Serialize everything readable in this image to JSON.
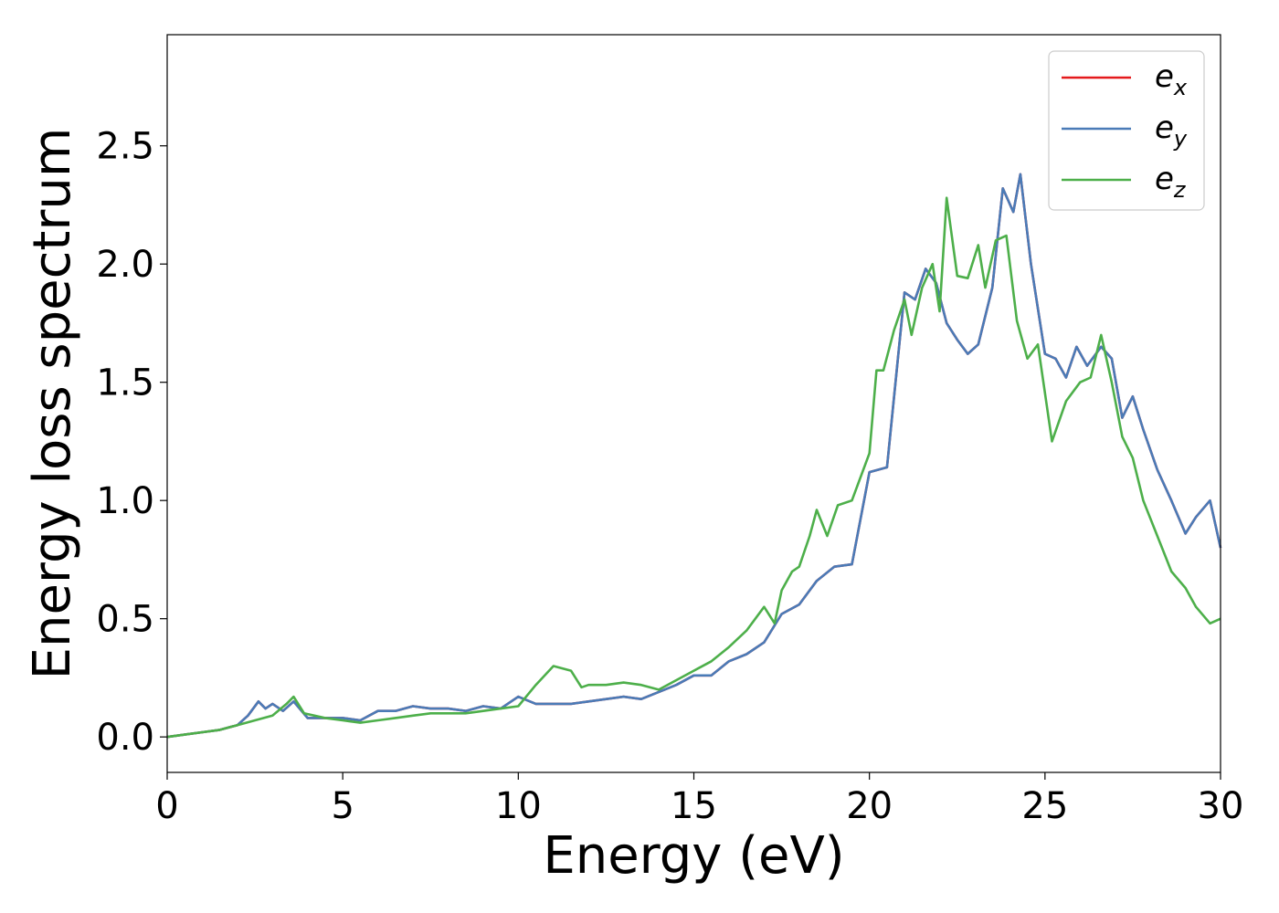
{
  "chart_data": {
    "type": "line",
    "xlabel": "Energy (eV)",
    "ylabel": "Energy loss spectrum",
    "xlim": [
      0,
      30
    ],
    "ylim": [
      -0.15,
      2.97
    ],
    "xticks": [
      "0",
      "5",
      "10",
      "15",
      "20",
      "25",
      "30"
    ],
    "yticks": [
      "0.0",
      "0.5",
      "1.0",
      "1.5",
      "2.0",
      "2.5"
    ],
    "grid": false,
    "legend_position": "top-right",
    "series": [
      {
        "name": "e",
        "subscript": "x",
        "color": "#e41a1c",
        "x": [
          0,
          0.5,
          1,
          1.5,
          2,
          2.3,
          2.6,
          2.8,
          3.0,
          3.3,
          3.6,
          4,
          4.5,
          5,
          5.5,
          6,
          6.5,
          7,
          7.5,
          8,
          8.5,
          9,
          9.5,
          10,
          10.5,
          11,
          11.5,
          12,
          12.5,
          13,
          13.5,
          14,
          14.5,
          15,
          15.5,
          16,
          16.5,
          17,
          17.5,
          18,
          18.5,
          19,
          19.5,
          20,
          20.5,
          21,
          21.3,
          21.6,
          21.9,
          22.2,
          22.5,
          22.8,
          23.1,
          23.5,
          23.8,
          24.1,
          24.3,
          24.6,
          25,
          25.3,
          25.6,
          25.9,
          26.2,
          26.6,
          26.9,
          27.2,
          27.5,
          27.8,
          28.2,
          28.6,
          29,
          29.3,
          29.7,
          30
        ],
        "y": [
          0,
          0.01,
          0.02,
          0.03,
          0.05,
          0.09,
          0.15,
          0.12,
          0.14,
          0.11,
          0.15,
          0.08,
          0.08,
          0.08,
          0.07,
          0.11,
          0.11,
          0.13,
          0.12,
          0.12,
          0.11,
          0.13,
          0.12,
          0.17,
          0.14,
          0.14,
          0.14,
          0.15,
          0.16,
          0.17,
          0.16,
          0.19,
          0.22,
          0.26,
          0.26,
          0.32,
          0.35,
          0.4,
          0.52,
          0.56,
          0.66,
          0.72,
          0.73,
          1.12,
          1.14,
          1.88,
          1.85,
          1.98,
          1.92,
          1.75,
          1.68,
          1.62,
          1.66,
          1.9,
          2.32,
          2.22,
          2.38,
          2.0,
          1.62,
          1.6,
          1.52,
          1.65,
          1.57,
          1.65,
          1.6,
          1.35,
          1.44,
          1.3,
          1.13,
          1.0,
          0.86,
          0.93,
          1.0,
          0.8
        ]
      },
      {
        "name": "e",
        "subscript": "y",
        "color": "#4a7bb7",
        "x": [
          0,
          0.5,
          1,
          1.5,
          2,
          2.3,
          2.6,
          2.8,
          3.0,
          3.3,
          3.6,
          4,
          4.5,
          5,
          5.5,
          6,
          6.5,
          7,
          7.5,
          8,
          8.5,
          9,
          9.5,
          10,
          10.5,
          11,
          11.5,
          12,
          12.5,
          13,
          13.5,
          14,
          14.5,
          15,
          15.5,
          16,
          16.5,
          17,
          17.5,
          18,
          18.5,
          19,
          19.5,
          20,
          20.5,
          21,
          21.3,
          21.6,
          21.9,
          22.2,
          22.5,
          22.8,
          23.1,
          23.5,
          23.8,
          24.1,
          24.3,
          24.6,
          25,
          25.3,
          25.6,
          25.9,
          26.2,
          26.6,
          26.9,
          27.2,
          27.5,
          27.8,
          28.2,
          28.6,
          29,
          29.3,
          29.7,
          30
        ],
        "y": [
          0,
          0.01,
          0.02,
          0.03,
          0.05,
          0.09,
          0.15,
          0.12,
          0.14,
          0.11,
          0.15,
          0.08,
          0.08,
          0.08,
          0.07,
          0.11,
          0.11,
          0.13,
          0.12,
          0.12,
          0.11,
          0.13,
          0.12,
          0.17,
          0.14,
          0.14,
          0.14,
          0.15,
          0.16,
          0.17,
          0.16,
          0.19,
          0.22,
          0.26,
          0.26,
          0.32,
          0.35,
          0.4,
          0.52,
          0.56,
          0.66,
          0.72,
          0.73,
          1.12,
          1.14,
          1.88,
          1.85,
          1.98,
          1.92,
          1.75,
          1.68,
          1.62,
          1.66,
          1.9,
          2.32,
          2.22,
          2.38,
          2.0,
          1.62,
          1.6,
          1.52,
          1.65,
          1.57,
          1.65,
          1.6,
          1.35,
          1.44,
          1.3,
          1.13,
          1.0,
          0.86,
          0.93,
          1.0,
          0.8
        ]
      },
      {
        "name": "e",
        "subscript": "z",
        "color": "#4daf4a",
        "x": [
          0,
          0.5,
          1,
          1.5,
          2,
          2.5,
          3.0,
          3.4,
          3.6,
          3.9,
          4.5,
          5,
          5.5,
          6,
          6.5,
          7,
          7.5,
          8,
          8.5,
          9,
          9.5,
          10,
          10.5,
          11,
          11.5,
          11.8,
          12,
          12.5,
          13,
          13.5,
          14,
          14.5,
          15,
          15.5,
          16,
          16.5,
          17,
          17.3,
          17.5,
          17.8,
          18,
          18.3,
          18.5,
          18.8,
          19.1,
          19.5,
          20,
          20.2,
          20.4,
          20.7,
          21,
          21.2,
          21.5,
          21.8,
          22.0,
          22.2,
          22.5,
          22.8,
          23.1,
          23.3,
          23.6,
          23.9,
          24.2,
          24.5,
          24.8,
          25.2,
          25.6,
          26.0,
          26.3,
          26.6,
          26.9,
          27.2,
          27.5,
          27.8,
          28.2,
          28.6,
          29,
          29.3,
          29.7,
          30
        ],
        "y": [
          0,
          0.01,
          0.02,
          0.03,
          0.05,
          0.07,
          0.09,
          0.14,
          0.17,
          0.1,
          0.08,
          0.07,
          0.06,
          0.07,
          0.08,
          0.09,
          0.1,
          0.1,
          0.1,
          0.11,
          0.12,
          0.13,
          0.22,
          0.3,
          0.28,
          0.21,
          0.22,
          0.22,
          0.23,
          0.22,
          0.2,
          0.24,
          0.28,
          0.32,
          0.38,
          0.45,
          0.55,
          0.48,
          0.62,
          0.7,
          0.72,
          0.85,
          0.96,
          0.85,
          0.98,
          1.0,
          1.2,
          1.55,
          1.55,
          1.72,
          1.85,
          1.7,
          1.9,
          2.0,
          1.8,
          2.28,
          1.95,
          1.94,
          2.08,
          1.9,
          2.1,
          2.12,
          1.76,
          1.6,
          1.66,
          1.25,
          1.42,
          1.5,
          1.52,
          1.7,
          1.5,
          1.27,
          1.18,
          1.0,
          0.85,
          0.7,
          0.63,
          0.55,
          0.48,
          0.5
        ]
      }
    ]
  }
}
